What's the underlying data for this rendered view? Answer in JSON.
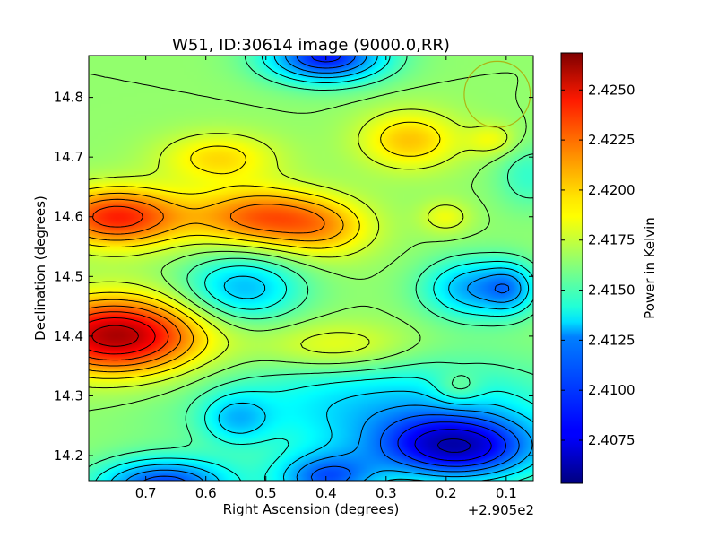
{
  "chart_data": {
    "type": "heatmap",
    "title": "W51, ID:30614 image (9000.0,RR)",
    "xlabel": "Right Ascension (degrees)",
    "ylabel": "Declination (degrees)",
    "x_offset_label": "+2.905e2",
    "xlim": [
      0.795,
      0.055
    ],
    "ylim": [
      14.158,
      14.87
    ],
    "x_ticks": [
      {
        "value": 0.7,
        "label": "0.7"
      },
      {
        "value": 0.6,
        "label": "0.6"
      },
      {
        "value": 0.5,
        "label": "0.5"
      },
      {
        "value": 0.4,
        "label": "0.4"
      },
      {
        "value": 0.3,
        "label": "0.3"
      },
      {
        "value": 0.2,
        "label": "0.2"
      },
      {
        "value": 0.1,
        "label": "0.1"
      }
    ],
    "y_ticks": [
      {
        "value": 14.2,
        "label": "14.2"
      },
      {
        "value": 14.3,
        "label": "14.3"
      },
      {
        "value": 14.4,
        "label": "14.4"
      },
      {
        "value": 14.5,
        "label": "14.5"
      },
      {
        "value": 14.6,
        "label": "14.6"
      },
      {
        "value": 14.7,
        "label": "14.7"
      },
      {
        "value": 14.8,
        "label": "14.8"
      }
    ],
    "colormap": "jet",
    "colorbar": {
      "label": "Power in Kelvin",
      "range": [
        2.40535,
        2.42685
      ],
      "ticks": [
        {
          "value": 2.4075,
          "label": "2.4075"
        },
        {
          "value": 2.41,
          "label": "2.4100"
        },
        {
          "value": 2.4125,
          "label": "2.4125"
        },
        {
          "value": 2.415,
          "label": "2.4150"
        },
        {
          "value": 2.4175,
          "label": "2.4175"
        },
        {
          "value": 2.42,
          "label": "2.4200"
        },
        {
          "value": 2.4225,
          "label": "2.4225"
        },
        {
          "value": 2.425,
          "label": "2.4250"
        }
      ]
    },
    "contours": true,
    "beam_circle": {
      "ra": 0.115,
      "dec": 14.805,
      "radius_deg": 0.055,
      "color": "#b4a000"
    },
    "base_level": 2.4165,
    "components": [
      {
        "ra": 0.75,
        "dec": 14.4,
        "sigma_ra": 0.1,
        "sigma_dec": 0.045,
        "amp": 0.0095
      },
      {
        "ra": 0.75,
        "dec": 14.6,
        "sigma_ra": 0.08,
        "sigma_dec": 0.035,
        "amp": 0.007
      },
      {
        "ra": 0.51,
        "dec": 14.6,
        "sigma_ra": 0.08,
        "sigma_dec": 0.035,
        "amp": 0.0055
      },
      {
        "ra": 0.4,
        "dec": 14.58,
        "sigma_ra": 0.06,
        "sigma_dec": 0.035,
        "amp": 0.003
      },
      {
        "ra": 0.58,
        "dec": 14.7,
        "sigma_ra": 0.07,
        "sigma_dec": 0.03,
        "amp": 0.003
      },
      {
        "ra": 0.26,
        "dec": 14.73,
        "sigma_ra": 0.06,
        "sigma_dec": 0.035,
        "amp": 0.0035
      },
      {
        "ra": 0.2,
        "dec": 14.6,
        "sigma_ra": 0.03,
        "sigma_dec": 0.02,
        "amp": 0.002
      },
      {
        "ra": 0.38,
        "dec": 14.38,
        "sigma_ra": 0.09,
        "sigma_dec": 0.03,
        "amp": 0.0025
      },
      {
        "ra": 0.54,
        "dec": 14.48,
        "sigma_ra": 0.07,
        "sigma_dec": 0.04,
        "amp": -0.0045
      },
      {
        "ra": 0.15,
        "dec": 14.48,
        "sigma_ra": 0.06,
        "sigma_dec": 0.035,
        "amp": -0.005
      },
      {
        "ra": 0.09,
        "dec": 14.48,
        "sigma_ra": 0.03,
        "sigma_dec": 0.03,
        "amp": -0.003
      },
      {
        "ra": 0.4,
        "dec": 14.87,
        "sigma_ra": 0.07,
        "sigma_dec": 0.03,
        "amp": -0.008
      },
      {
        "ra": 0.55,
        "dec": 14.26,
        "sigma_ra": 0.04,
        "sigma_dec": 0.03,
        "amp": -0.003
      },
      {
        "ra": 0.67,
        "dec": 14.15,
        "sigma_ra": 0.08,
        "sigma_dec": 0.03,
        "amp": -0.007
      },
      {
        "ra": 0.4,
        "dec": 14.16,
        "sigma_ra": 0.06,
        "sigma_dec": 0.03,
        "amp": -0.006
      },
      {
        "ra": 0.18,
        "dec": 14.21,
        "sigma_ra": 0.1,
        "sigma_dec": 0.04,
        "amp": -0.0085
      },
      {
        "ra": 0.3,
        "dec": 14.28,
        "sigma_ra": 0.2,
        "sigma_dec": 0.06,
        "amp": -0.004
      },
      {
        "ra": 0.18,
        "dec": 14.31,
        "sigma_ra": 0.03,
        "sigma_dec": 0.02,
        "amp": 0.002
      },
      {
        "ra": 0.12,
        "dec": 14.73,
        "sigma_ra": 0.03,
        "sigma_dec": 0.02,
        "amp": 0.002
      },
      {
        "ra": 0.06,
        "dec": 14.67,
        "sigma_ra": 0.04,
        "sigma_dec": 0.04,
        "amp": -0.002
      }
    ]
  }
}
